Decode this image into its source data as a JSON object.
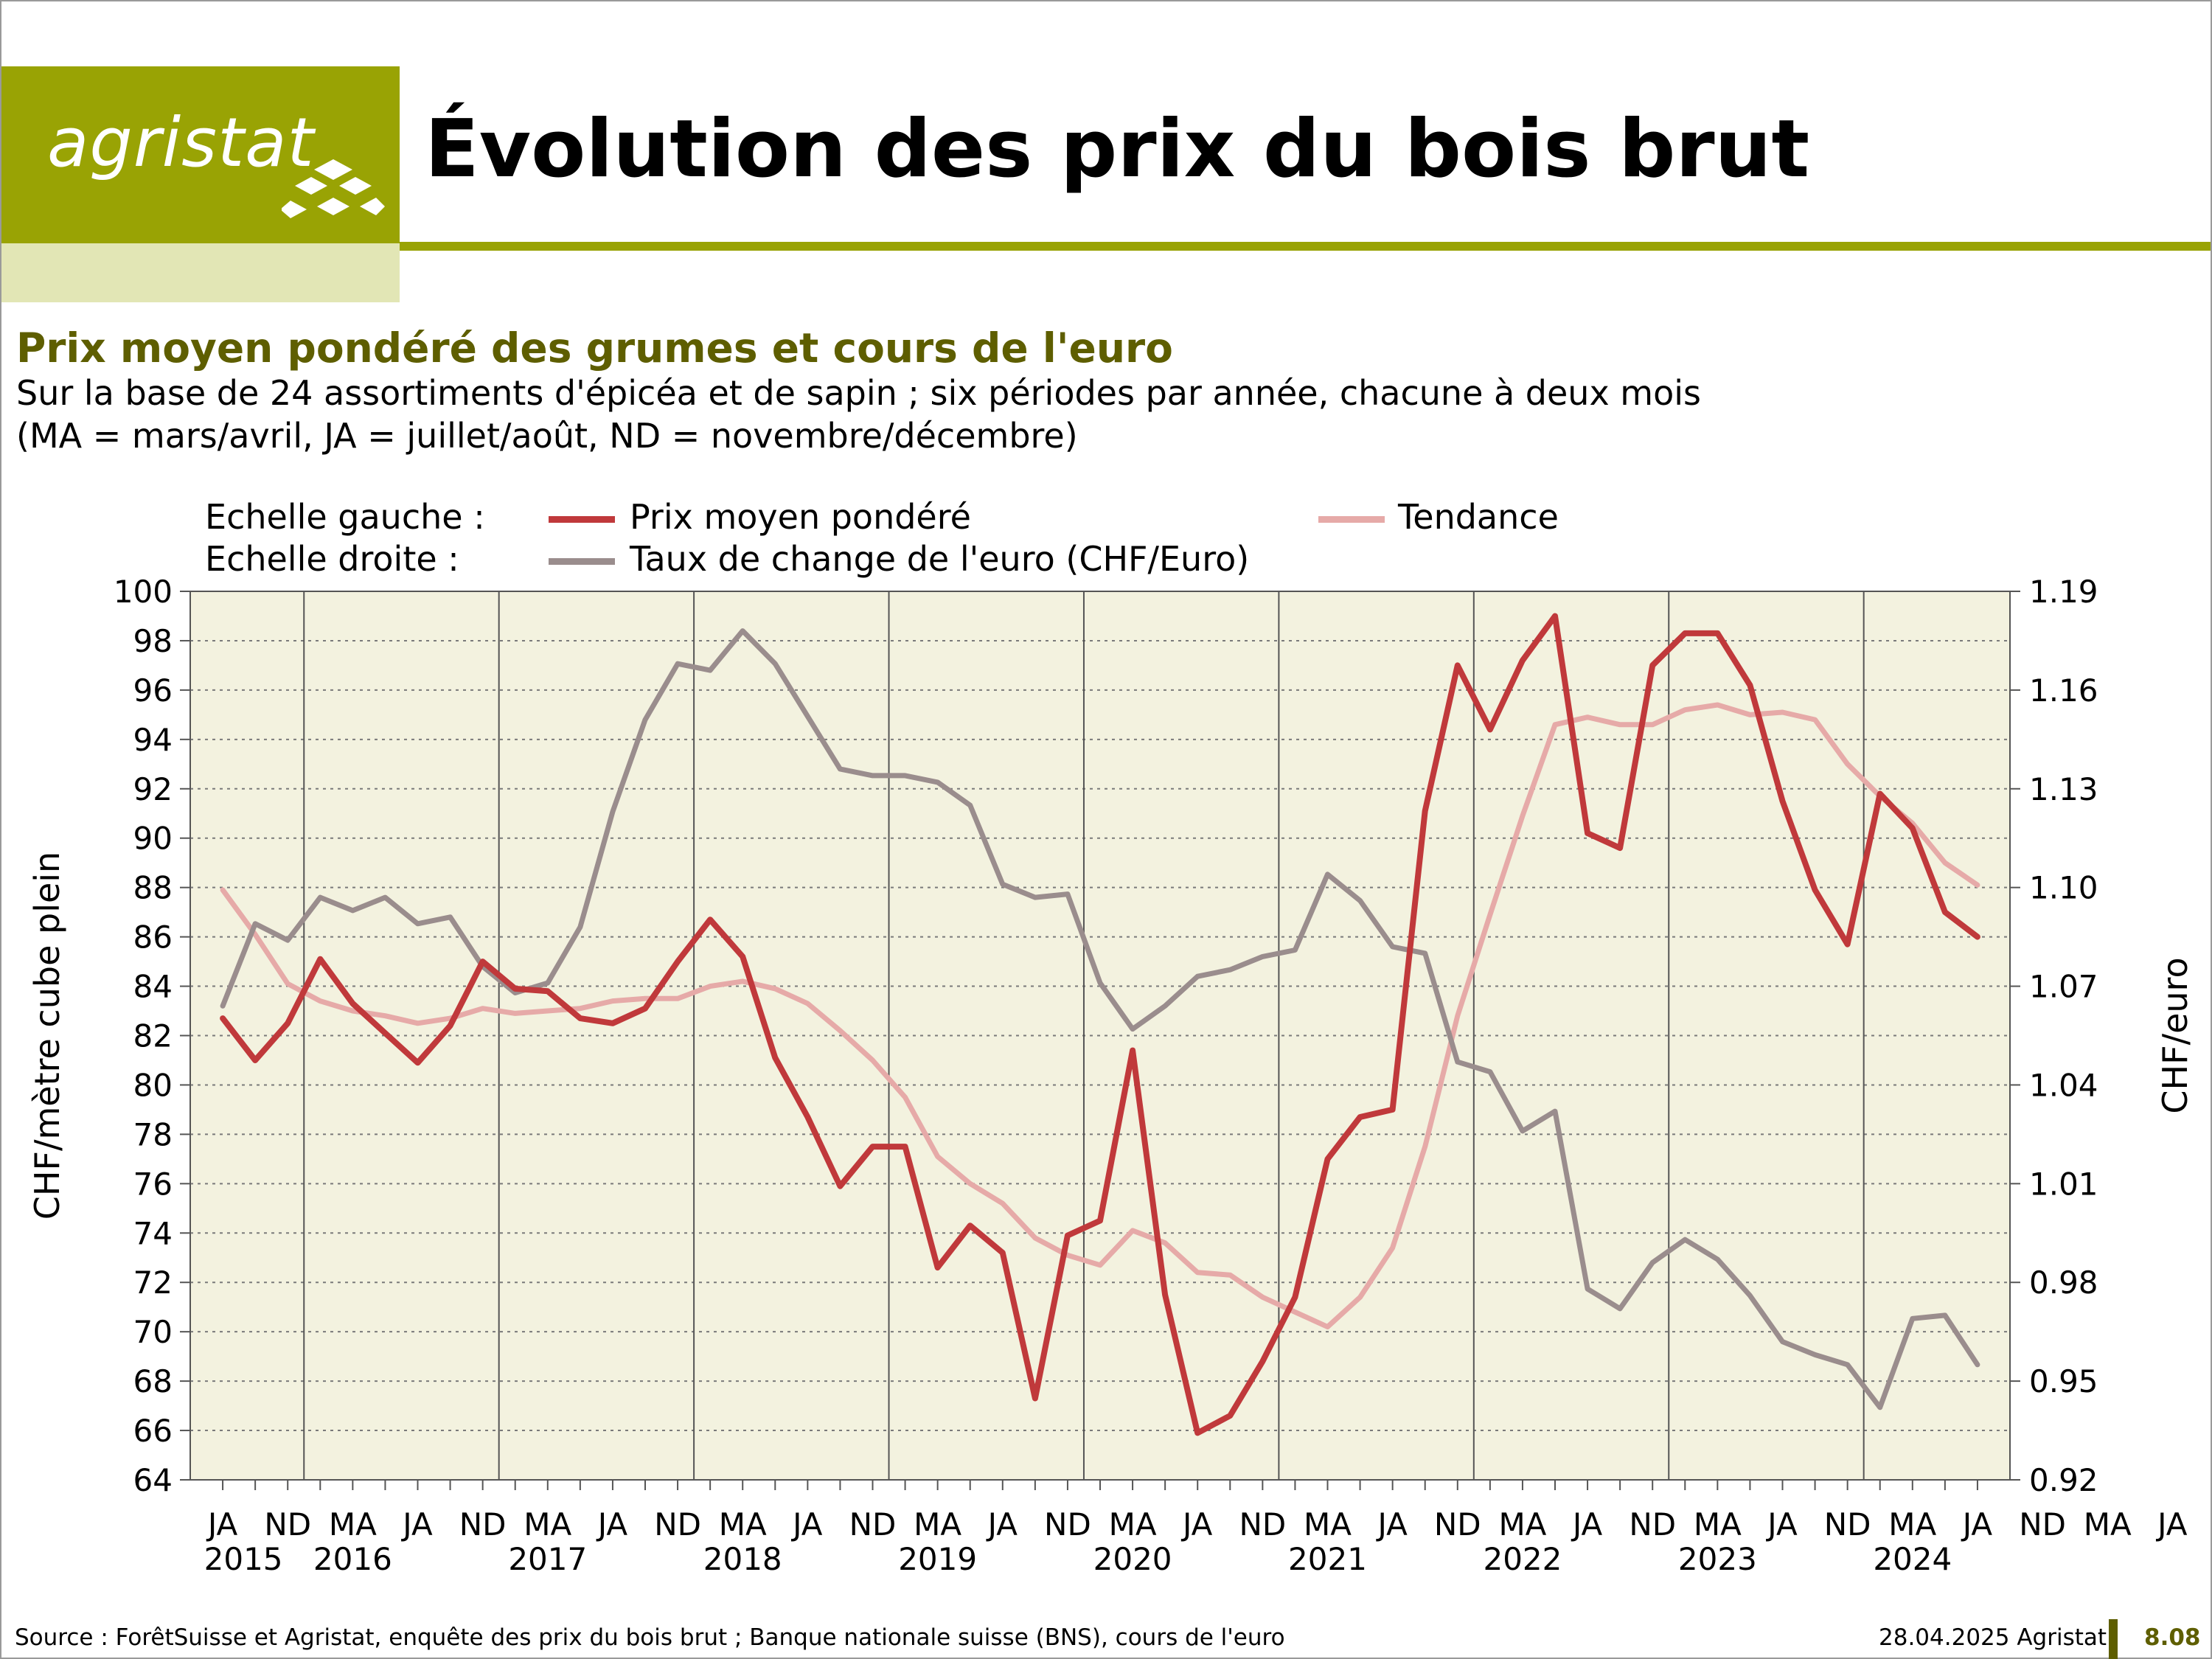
{
  "header": {
    "logo_text": "agristat",
    "title": "Évolution des prix du bois brut"
  },
  "subtitle": "Prix moyen pondéré des grumes et cours de l'euro",
  "description": {
    "line1": "Sur la base de 24 assortiments d'épicéa et de sapin ; six périodes par année, chacune à deux mois",
    "line2": "(MA = mars/avril, JA = juillet/août, ND = novembre/décembre)"
  },
  "legend": {
    "left_scale_label": "Echelle gauche :",
    "right_scale_label": "Echelle droite :",
    "price": "Prix moyen pondéré",
    "trend": "Tendance",
    "euro": "Taux de change de l'euro (CHF/Euro)"
  },
  "colors": {
    "price": "#c0393b",
    "trend": "#e6aaa8",
    "euro": "#9a8d8d",
    "plot_bg": "#f3f2df",
    "brand": "#99a304"
  },
  "footer": {
    "source": "Source : ForêtSuisse et Agristat, enquête des prix du bois brut ; Banque nationale suisse (BNS), cours de l'euro",
    "date": "28.04.2025 Agristat",
    "page": "8.08"
  },
  "chart_data": {
    "type": "line",
    "x_tick_labels": [
      "JA",
      "ND",
      "MA",
      "JA",
      "ND",
      "MA",
      "JA",
      "ND",
      "MA",
      "JA",
      "ND",
      "MA",
      "JA",
      "ND",
      "MA",
      "JA",
      "ND",
      "MA",
      "JA",
      "ND",
      "MA",
      "JA",
      "ND",
      "MA",
      "JA",
      "ND",
      "MA",
      "JA",
      "ND",
      "MA",
      "JA"
    ],
    "year_labels": [
      "2015",
      "2016",
      "2017",
      "2018",
      "2019",
      "2020",
      "2021",
      "2022",
      "2023",
      "2024"
    ],
    "ylabel": "CHF/mètre cube plein",
    "ylabel_right": "CHF/euro",
    "ylim": [
      64,
      100
    ],
    "yticks": [
      64,
      66,
      68,
      70,
      72,
      74,
      76,
      78,
      80,
      82,
      84,
      86,
      88,
      90,
      92,
      94,
      96,
      98,
      100
    ],
    "ylim_right": [
      0.92,
      1.19
    ],
    "yticks_right": [
      "0.92",
      "0.95",
      "0.98",
      "1.01",
      "1.04",
      "1.07",
      "1.10",
      "1.13",
      "1.16",
      "1.19"
    ],
    "grid": "horizontal dotted",
    "legend_position": "top",
    "series": [
      {
        "name": "Prix moyen pondéré",
        "axis": "left",
        "values": [
          82.7,
          81.0,
          82.5,
          85.1,
          83.3,
          82.1,
          80.9,
          82.4,
          85.0,
          83.9,
          83.8,
          82.7,
          82.5,
          83.1,
          85.0,
          86.7,
          85.2,
          81.1,
          78.7,
          75.9,
          77.5,
          77.5,
          72.6,
          74.3,
          73.2,
          67.3,
          73.9,
          74.5,
          81.4,
          71.5,
          65.9,
          66.6,
          68.8,
          71.4,
          77.0,
          78.7,
          79.0,
          91.1,
          97.0,
          94.4,
          97.2,
          99.0,
          90.2,
          89.6,
          97.0,
          98.3,
          98.3,
          96.2,
          91.5,
          87.9,
          85.7,
          91.8,
          90.4,
          87.0,
          86.0
        ]
      },
      {
        "name": "Tendance",
        "axis": "left",
        "values": [
          87.9,
          86.1,
          84.1,
          83.4,
          83.0,
          82.8,
          82.5,
          82.7,
          83.1,
          82.9,
          83.0,
          83.1,
          83.4,
          83.5,
          83.5,
          84.0,
          84.2,
          83.9,
          83.3,
          82.2,
          81.0,
          79.5,
          77.1,
          76.0,
          75.2,
          73.8,
          73.1,
          72.7,
          74.1,
          73.6,
          72.4,
          72.3,
          71.4,
          70.8,
          70.2,
          71.4,
          73.4,
          77.5,
          82.8,
          86.9,
          90.9,
          94.6,
          94.9,
          94.6,
          94.6,
          95.2,
          95.4,
          95.0,
          95.1,
          94.8,
          93.0,
          91.7,
          90.6,
          89.0,
          88.1
        ]
      },
      {
        "name": "Taux de change de l'euro (CHF/Euro)",
        "axis": "right",
        "values": [
          1.064,
          1.089,
          1.084,
          1.097,
          1.093,
          1.097,
          1.089,
          1.091,
          1.076,
          1.068,
          1.071,
          1.088,
          1.123,
          1.151,
          1.168,
          1.166,
          1.178,
          1.168,
          1.152,
          1.136,
          1.134,
          1.134,
          1.132,
          1.125,
          1.101,
          1.097,
          1.098,
          1.071,
          1.057,
          1.064,
          1.073,
          1.075,
          1.079,
          1.081,
          1.104,
          1.096,
          1.082,
          1.08,
          1.047,
          1.044,
          1.026,
          1.032,
          0.978,
          0.972,
          0.986,
          0.993,
          0.987,
          0.976,
          0.962,
          0.958,
          0.955,
          0.942,
          0.969,
          0.97,
          0.955
        ]
      }
    ]
  }
}
